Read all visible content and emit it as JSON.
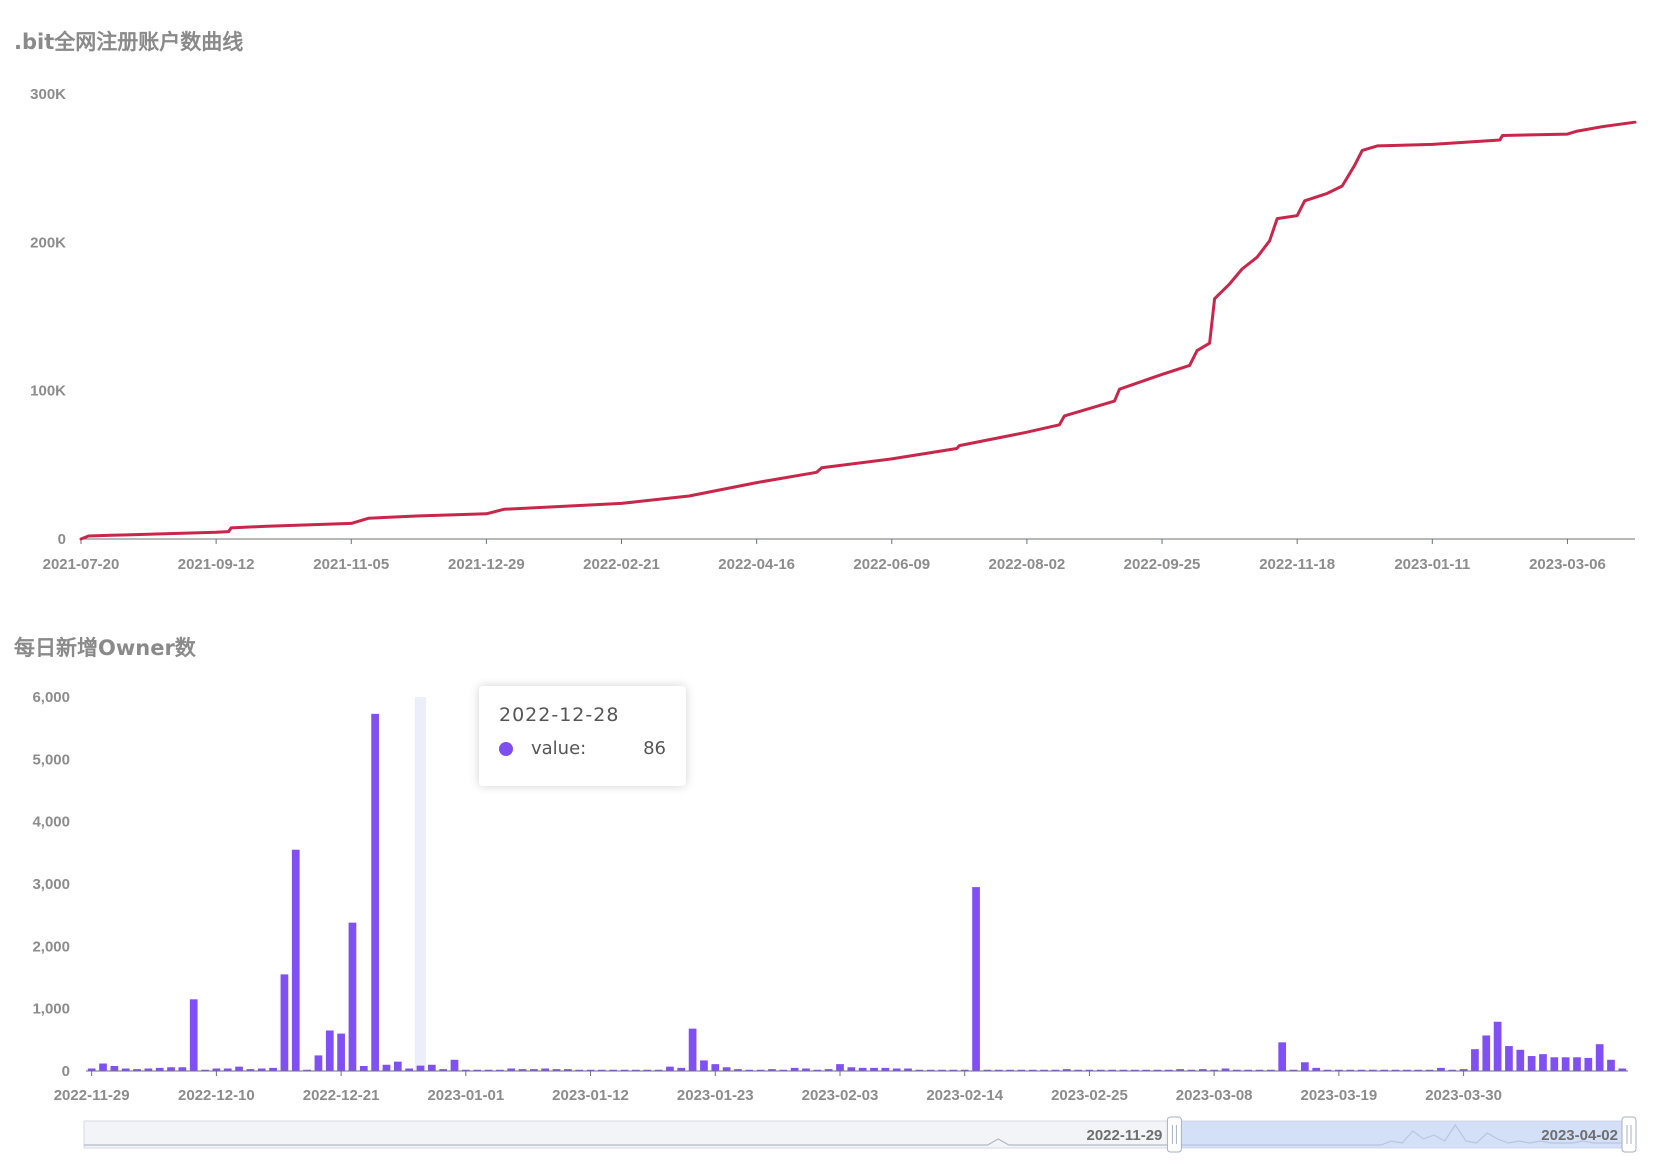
{
  "chart_data": [
    {
      "type": "line",
      "title": ".bit全网注册账户数曲线",
      "color": "#c8264a",
      "yticks": [
        "0",
        "100K",
        "200K",
        "300K"
      ],
      "ylim": [
        0,
        300000
      ],
      "xticks": [
        "2021-07-20",
        "2021-09-12",
        "2021-11-05",
        "2021-12-29",
        "2022-02-21",
        "2022-04-16",
        "2022-06-09",
        "2022-08-02",
        "2022-09-25",
        "2022-11-18",
        "2023-01-11",
        "2023-03-06"
      ],
      "xlim": [
        "2021-07-20",
        "2023-04-02"
      ],
      "points": [
        [
          "2021-07-20",
          0
        ],
        [
          "2021-07-23",
          2000
        ],
        [
          "2021-08-01",
          2500
        ],
        [
          "2021-09-12",
          4500
        ],
        [
          "2021-09-17",
          5000
        ],
        [
          "2021-09-18",
          7500
        ],
        [
          "2021-10-01",
          8500
        ],
        [
          "2021-11-05",
          10500
        ],
        [
          "2021-11-12",
          14000
        ],
        [
          "2021-12-01",
          15500
        ],
        [
          "2021-12-29",
          17000
        ],
        [
          "2022-01-05",
          20000
        ],
        [
          "2022-02-21",
          24000
        ],
        [
          "2022-03-20",
          29000
        ],
        [
          "2022-04-16",
          38000
        ],
        [
          "2022-05-10",
          45000
        ],
        [
          "2022-05-12",
          48000
        ],
        [
          "2022-06-09",
          54000
        ],
        [
          "2022-07-05",
          61000
        ],
        [
          "2022-07-06",
          63000
        ],
        [
          "2022-08-02",
          72000
        ],
        [
          "2022-08-15",
          77000
        ],
        [
          "2022-08-17",
          83000
        ],
        [
          "2022-09-06",
          93000
        ],
        [
          "2022-09-08",
          101000
        ],
        [
          "2022-09-25",
          111000
        ],
        [
          "2022-10-06",
          117000
        ],
        [
          "2022-10-09",
          127000
        ],
        [
          "2022-10-14",
          132000
        ],
        [
          "2022-10-16",
          162000
        ],
        [
          "2022-10-22",
          172000
        ],
        [
          "2022-10-27",
          182000
        ],
        [
          "2022-11-02",
          190000
        ],
        [
          "2022-11-07",
          201000
        ],
        [
          "2022-11-10",
          216000
        ],
        [
          "2022-11-18",
          218000
        ],
        [
          "2022-11-21",
          228000
        ],
        [
          "2022-11-30",
          233000
        ],
        [
          "2022-12-06",
          238000
        ],
        [
          "2022-12-11",
          252000
        ],
        [
          "2022-12-14",
          262000
        ],
        [
          "2022-12-20",
          265000
        ],
        [
          "2023-01-11",
          266000
        ],
        [
          "2023-02-07",
          269000
        ],
        [
          "2023-02-08",
          272000
        ],
        [
          "2023-03-06",
          273000
        ],
        [
          "2023-03-10",
          275000
        ],
        [
          "2023-03-20",
          278000
        ],
        [
          "2023-04-02",
          281000
        ]
      ]
    },
    {
      "type": "bar",
      "title": "每日新增Owner数",
      "color": "#8050f4",
      "yticks": [
        "0",
        "1,000",
        "2,000",
        "3,000",
        "4,000",
        "5,000",
        "6,000"
      ],
      "ylim": [
        0,
        6000
      ],
      "xticks": [
        "2022-11-29",
        "2022-12-10",
        "2022-12-21",
        "2023-01-01",
        "2023-01-12",
        "2023-01-23",
        "2023-02-03",
        "2023-02-14",
        "2023-02-25",
        "2023-03-08",
        "2023-03-19",
        "2023-03-30"
      ],
      "start_date": "2022-11-29",
      "values": [
        40,
        120,
        80,
        40,
        30,
        40,
        50,
        60,
        60,
        1150,
        20,
        40,
        40,
        70,
        30,
        40,
        50,
        1550,
        3550,
        20,
        250,
        650,
        600,
        2380,
        80,
        5730,
        100,
        150,
        40,
        86,
        100,
        30,
        180,
        20,
        20,
        20,
        20,
        40,
        30,
        30,
        40,
        30,
        30,
        20,
        20,
        20,
        20,
        20,
        20,
        20,
        20,
        70,
        50,
        680,
        170,
        110,
        60,
        30,
        20,
        20,
        30,
        20,
        50,
        40,
        20,
        30,
        110,
        60,
        50,
        50,
        50,
        40,
        40,
        20,
        20,
        20,
        20,
        20,
        2950,
        20,
        20,
        20,
        20,
        20,
        20,
        20,
        30,
        20,
        20,
        20,
        20,
        20,
        20,
        20,
        20,
        20,
        30,
        20,
        30,
        20,
        40,
        20,
        20,
        20,
        20,
        460,
        20,
        140,
        50,
        20,
        20,
        20,
        20,
        20,
        20,
        20,
        20,
        20,
        20,
        50,
        20,
        30,
        350,
        570,
        790,
        400,
        340,
        240,
        270,
        220,
        220,
        220,
        210,
        430,
        180,
        40
      ],
      "highlight_index": 29,
      "slider": {
        "start_label": "2022-11-29",
        "end_label": "2023-04-02",
        "start_fraction": 0.7,
        "end_fraction": 1.0
      }
    }
  ],
  "tooltip": {
    "date": "2022-12-28",
    "series_label": "value:",
    "value": "86"
  }
}
